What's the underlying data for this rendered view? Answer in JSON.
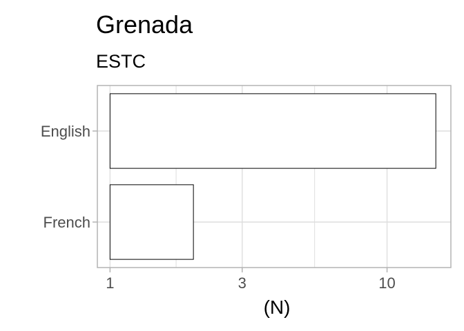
{
  "chart_data": {
    "type": "bar",
    "orientation": "horizontal",
    "title": "Grenada",
    "subtitle": "ESTC",
    "categories": [
      "English",
      "French"
    ],
    "values": [
      15,
      2
    ],
    "xlabel": "(N)",
    "ylabel": "",
    "x_scale": "log10",
    "xlim": [
      0.9,
      17
    ],
    "xticks": [
      1,
      3,
      10
    ],
    "xtick_labels": [
      "1",
      "3",
      "10"
    ],
    "grid": true,
    "colors": {
      "bar_fill": "#ffffff",
      "bar_stroke": "#000000",
      "grid": "#dedede",
      "panel_border": "#b3b3b3"
    }
  }
}
